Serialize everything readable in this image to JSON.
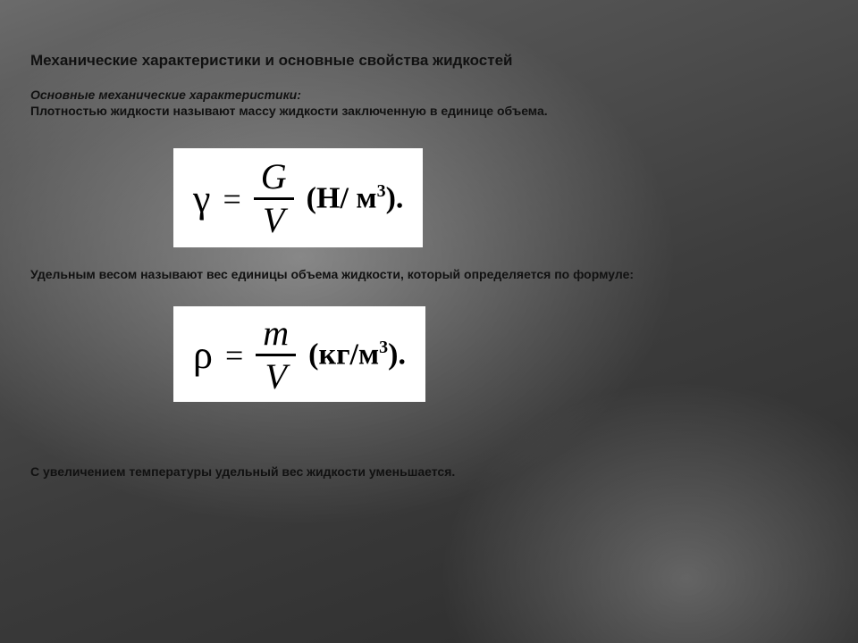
{
  "title": "Механические характеристики и основные свойства жидкостей",
  "subhead": "Основные механические характеристики:",
  "para1": "Плотностью жидкости называют массу жидкости заключенную в единице объема.",
  "para2": "Удельным весом называют вес единицы объема жидкости, который определяется по формуле:",
  "para3": "С увеличением температуры удельный вес жидкости уменьшается.",
  "formula1": {
    "lhs": "γ",
    "eq": "=",
    "num": "G",
    "den": "V",
    "units_open": "(",
    "units_a": "Н",
    "units_slash": "/ ",
    "units_b": "м",
    "units_exp": "3",
    "units_close": ").",
    "box_bg": "#ffffff"
  },
  "formula2": {
    "lhs": "ρ",
    "eq": "=",
    "num": "m",
    "den": "V",
    "units_open": "(",
    "units_a": "кг",
    "units_slash": "/",
    "units_b": "м",
    "units_exp": "3",
    "units_close": ").",
    "box_bg": "#ffffff"
  },
  "style": {
    "slide_width": 960,
    "slide_height": 720,
    "title_fontsize": 17,
    "body_fontsize": 14,
    "formula_sym_fontsize": 44,
    "formula_frac_fontsize": 40,
    "formula_units_fontsize": 34,
    "text_color": "#111111",
    "formula_text_color": "#000000",
    "bg_gradient_stops": [
      "#6b6b6b",
      "#555555",
      "#4a4a4a",
      "#3d3d3d",
      "#333333",
      "#2b2b2b"
    ]
  }
}
